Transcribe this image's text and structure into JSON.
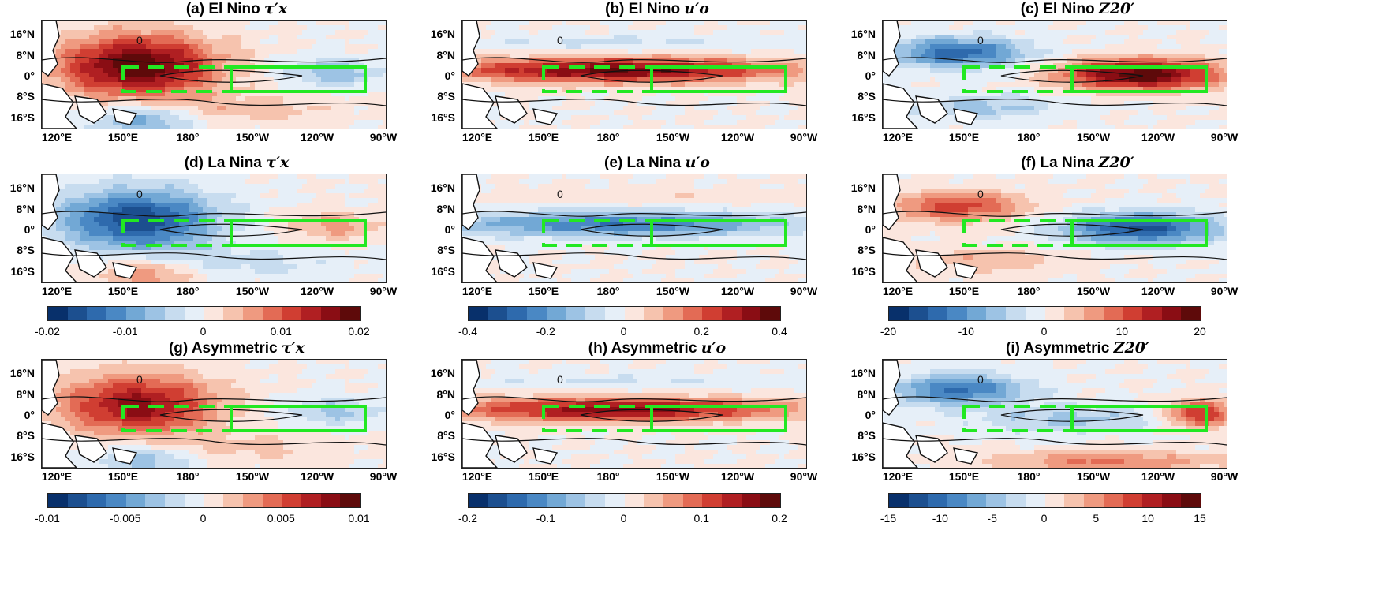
{
  "panels": [
    {
      "title": "(a) El Nino",
      "symbol": "τ′x",
      "kind": "tau",
      "sign": 1,
      "scale": 1.0
    },
    {
      "title": "(b) El Nino",
      "symbol": "u′o",
      "kind": "u",
      "sign": 1,
      "scale": 1.0
    },
    {
      "title": "(c) El Nino",
      "symbol": "Z20′",
      "kind": "z",
      "sign": 1,
      "scale": 1.0
    },
    {
      "title": "(d) La Nina",
      "symbol": "τ′x",
      "kind": "tau",
      "sign": -1,
      "scale": 0.85
    },
    {
      "title": "(e) La Nina",
      "symbol": "u′o",
      "kind": "u",
      "sign": -1,
      "scale": 0.7
    },
    {
      "title": "(f) La Nina",
      "symbol": "Z20′",
      "kind": "z",
      "sign": -1,
      "scale": 0.8
    },
    {
      "title": "(g) Asymmetric",
      "symbol": "τ′x",
      "kind": "tau",
      "sign": 1,
      "scale": 0.8
    },
    {
      "title": "(h) Asymmetric",
      "symbol": "u′o",
      "kind": "u",
      "sign": 1,
      "scale": 0.9
    },
    {
      "title": "(i) Asymmetric",
      "symbol": "Z20′",
      "kind": "asymz",
      "sign": 1,
      "scale": 0.85
    }
  ],
  "lat_labels": [
    "16°N",
    "8°N",
    "0°",
    "8°S",
    "16°S"
  ],
  "lon_labels": [
    "120°E",
    "150°E",
    "180°",
    "150°W",
    "120°W",
    "90°W"
  ],
  "colorbars": [
    {
      "ticks": [
        "-0.02",
        "-0.01",
        "0",
        "0.01",
        "0.02"
      ]
    },
    {
      "ticks": [
        "-0.4",
        "-0.2",
        "0",
        "0.2",
        "0.4"
      ]
    },
    {
      "ticks": [
        "-20",
        "-10",
        "0",
        "10",
        "20"
      ]
    },
    {
      "ticks": [
        "-0.01",
        "-0.005",
        "0",
        "0.005",
        "0.01"
      ]
    },
    {
      "ticks": [
        "-0.2",
        "-0.1",
        "0",
        "0.1",
        "0.2"
      ]
    },
    {
      "ticks": [
        "-15",
        "-10",
        "-5",
        "0",
        "5",
        "10",
        "15"
      ]
    }
  ],
  "colors": {
    "palette": [
      "#08306b",
      "#1c4f8f",
      "#2e6aad",
      "#4a88c4",
      "#72a8d5",
      "#9dc3e4",
      "#c7dcef",
      "#e6eff8",
      "#fbe6de",
      "#f6c3ae",
      "#ef9a80",
      "#e36b55",
      "#d03e32",
      "#b01f22",
      "#8a0d14",
      "#5e0a0a"
    ],
    "box": "#22e822",
    "contour": "#111111"
  },
  "chart_data": {
    "type": "heatmap",
    "layout": "3x3 map panels with shared colorbars per row pair",
    "lat_range": [
      "20°S",
      "20°N"
    ],
    "lon_range": [
      "120°E",
      "80°W"
    ],
    "boxes": {
      "dashed": {
        "lon": [
          "160°E",
          "150°W"
        ],
        "lat": [
          "5°S",
          "5°N"
        ]
      },
      "solid": {
        "lon": [
          "150°W",
          "90°W"
        ],
        "lat": [
          "5°S",
          "5°N"
        ]
      }
    },
    "colorbar_ranges": [
      {
        "variable": "τ′x (rows 1-2)",
        "range": [
          -0.02,
          0.02
        ]
      },
      {
        "variable": "u′o (rows 1-2)",
        "range": [
          -0.4,
          0.4
        ]
      },
      {
        "variable": "Z20′ (rows 1-2)",
        "range": [
          -25,
          25
        ]
      },
      {
        "variable": "τ′x asymmetric",
        "range": [
          -0.01,
          0.01
        ]
      },
      {
        "variable": "u′o asymmetric",
        "range": [
          -0.2,
          0.2
        ]
      },
      {
        "variable": "Z20′ asymmetric",
        "range": [
          -15,
          15
        ]
      }
    ]
  }
}
